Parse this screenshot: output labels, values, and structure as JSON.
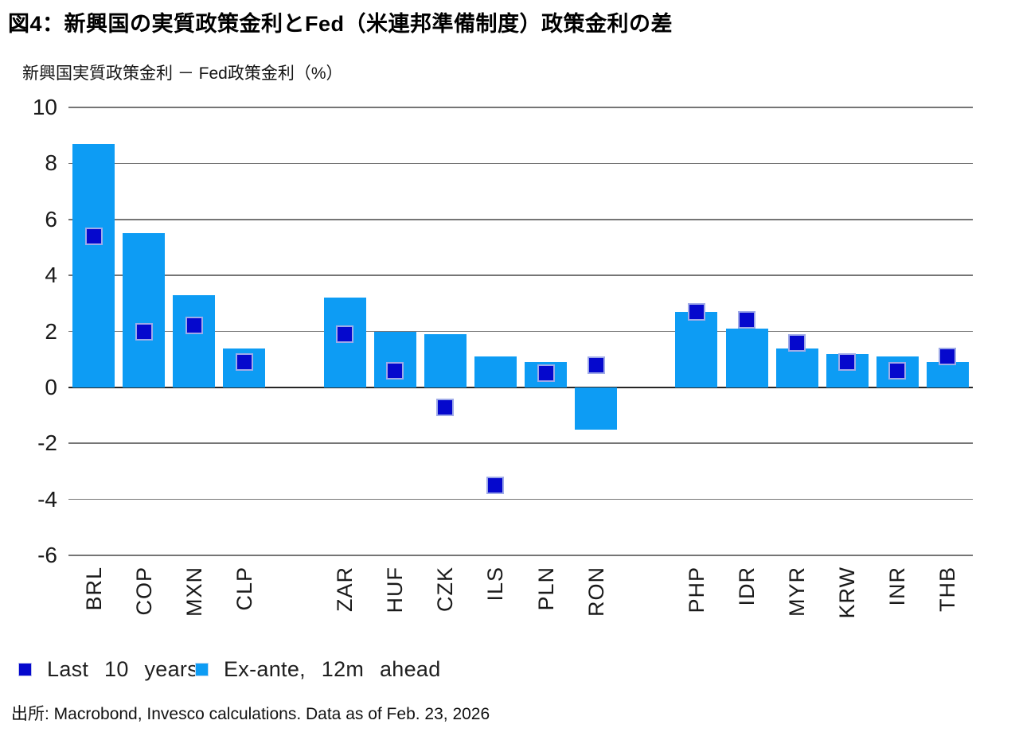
{
  "header": {
    "title": "図4：新興国の実質政策金利とFed（米連邦準備制度）政策金利の差",
    "subtitle": "新興国実質政策金利 － Fed政策金利（%）"
  },
  "legend": {
    "items": [
      {
        "label": "Last 10 years",
        "color": "#0508CD",
        "marker": "square"
      },
      {
        "label": "Ex-ante, 12m ahead",
        "color": "#0D9CF4",
        "marker": "square"
      }
    ]
  },
  "footer": {
    "source": "出所: Macrobond, Invesco calculations. Data as of Feb. 23, 2026"
  },
  "colors": {
    "bar_light_blue": "#0D9CF4",
    "marker_dark_blue": "#0508CD",
    "marker_border": "#9FAAE8",
    "gridline": "#757575",
    "zero_line": "#262626",
    "text": "#1a1a1a"
  },
  "chart_data": {
    "type": "bar",
    "title": "図4：新興国の実質政策金利とFed（米連邦準備制度）政策金利の差",
    "ylabel": "新興国実質政策金利 － Fed政策金利（%）",
    "xlabel": "",
    "categories": [
      "BRL",
      "COP",
      "MXN",
      "CLP",
      "ZAR",
      "HUF",
      "CZK",
      "ILS",
      "PLN",
      "RON",
      "PHP",
      "IDR",
      "MYR",
      "KRW",
      "INR",
      "THB"
    ],
    "slot_index": [
      0,
      1,
      2,
      3,
      5,
      6,
      7,
      8,
      9,
      10,
      12,
      13,
      14,
      15,
      16,
      17
    ],
    "n_slots": 18,
    "series": [
      {
        "name": "Ex-ante, 12m ahead",
        "style": "bar",
        "color": "#0D9CF4",
        "values": [
          8.7,
          5.5,
          3.3,
          1.4,
          3.2,
          2.0,
          1.9,
          1.1,
          0.9,
          -1.5,
          2.7,
          2.1,
          1.4,
          1.2,
          1.1,
          0.9
        ]
      },
      {
        "name": "Last 10 years",
        "style": "square-marker",
        "color": "#0508CD",
        "values": [
          5.4,
          2.0,
          2.2,
          0.9,
          1.9,
          0.6,
          -0.7,
          -3.5,
          0.5,
          0.8,
          2.7,
          2.4,
          1.6,
          0.9,
          0.6,
          1.1
        ]
      }
    ],
    "ylim": [
      -6,
      10
    ],
    "yticks": [
      10,
      8,
      6,
      4,
      2,
      0,
      -2,
      -4,
      -6
    ],
    "grid": true,
    "legend_position": "bottom-left"
  }
}
